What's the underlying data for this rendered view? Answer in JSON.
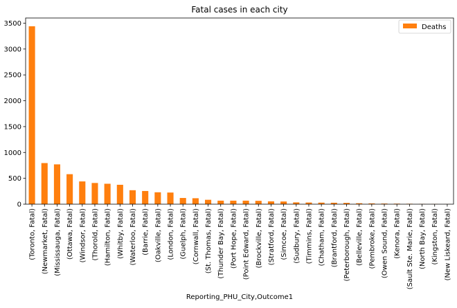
{
  "chart_data": {
    "type": "bar",
    "title": "Fatal cases in each city",
    "xlabel": "Reporting_PHU_City,Outcome1",
    "ylabel": "",
    "ylim": [
      0,
      3600
    ],
    "yticks": [
      0,
      500,
      1000,
      1500,
      2000,
      2500,
      3000,
      3500
    ],
    "grid": false,
    "legend_position": "top-right",
    "bar_color": "#ff7f0e",
    "categories": [
      "(Toronto, Fatal)",
      "(Newmarket, Fatal)",
      "(Mississauga, Fatal)",
      "(Ottawa, Fatal)",
      "(Windsor, Fatal)",
      "(Thorold, Fatal)",
      "(Hamilton, Fatal)",
      "(Whitby, Fatal)",
      "(Waterloo, Fatal)",
      "(Barrie, Fatal)",
      "(Oakville, Fatal)",
      "(London, Fatal)",
      "(Guelph, Fatal)",
      "(Cornwall, Fatal)",
      "(St. Thomas, Fatal)",
      "(Thunder Bay, Fatal)",
      "(Port Hope, Fatal)",
      "(Point Edward, Fatal)",
      "(Brockville, Fatal)",
      "(Stratford, Fatal)",
      "(Simcoe, Fatal)",
      "(Sudbury, Fatal)",
      "(Timmins, Fatal)",
      "(Chatham, Fatal)",
      "(Brantford, Fatal)",
      "(Peterborough, Fatal)",
      "(Belleville, Fatal)",
      "(Pembroke, Fatal)",
      "(Owen Sound, Fatal)",
      "(Kenora, Fatal)",
      "(Sault Ste. Marie, Fatal)",
      "(North Bay, Fatal)",
      "(Kingston, Fatal)",
      "(New Liskeard, Fatal)"
    ],
    "series": [
      {
        "name": "Deaths",
        "values": [
          3440,
          795,
          770,
          580,
          440,
          410,
          395,
          375,
          270,
          255,
          230,
          225,
          120,
          115,
          85,
          68,
          68,
          68,
          65,
          55,
          52,
          35,
          32,
          30,
          28,
          25,
          18,
          15,
          12,
          10,
          8,
          5,
          4,
          2
        ]
      }
    ]
  }
}
